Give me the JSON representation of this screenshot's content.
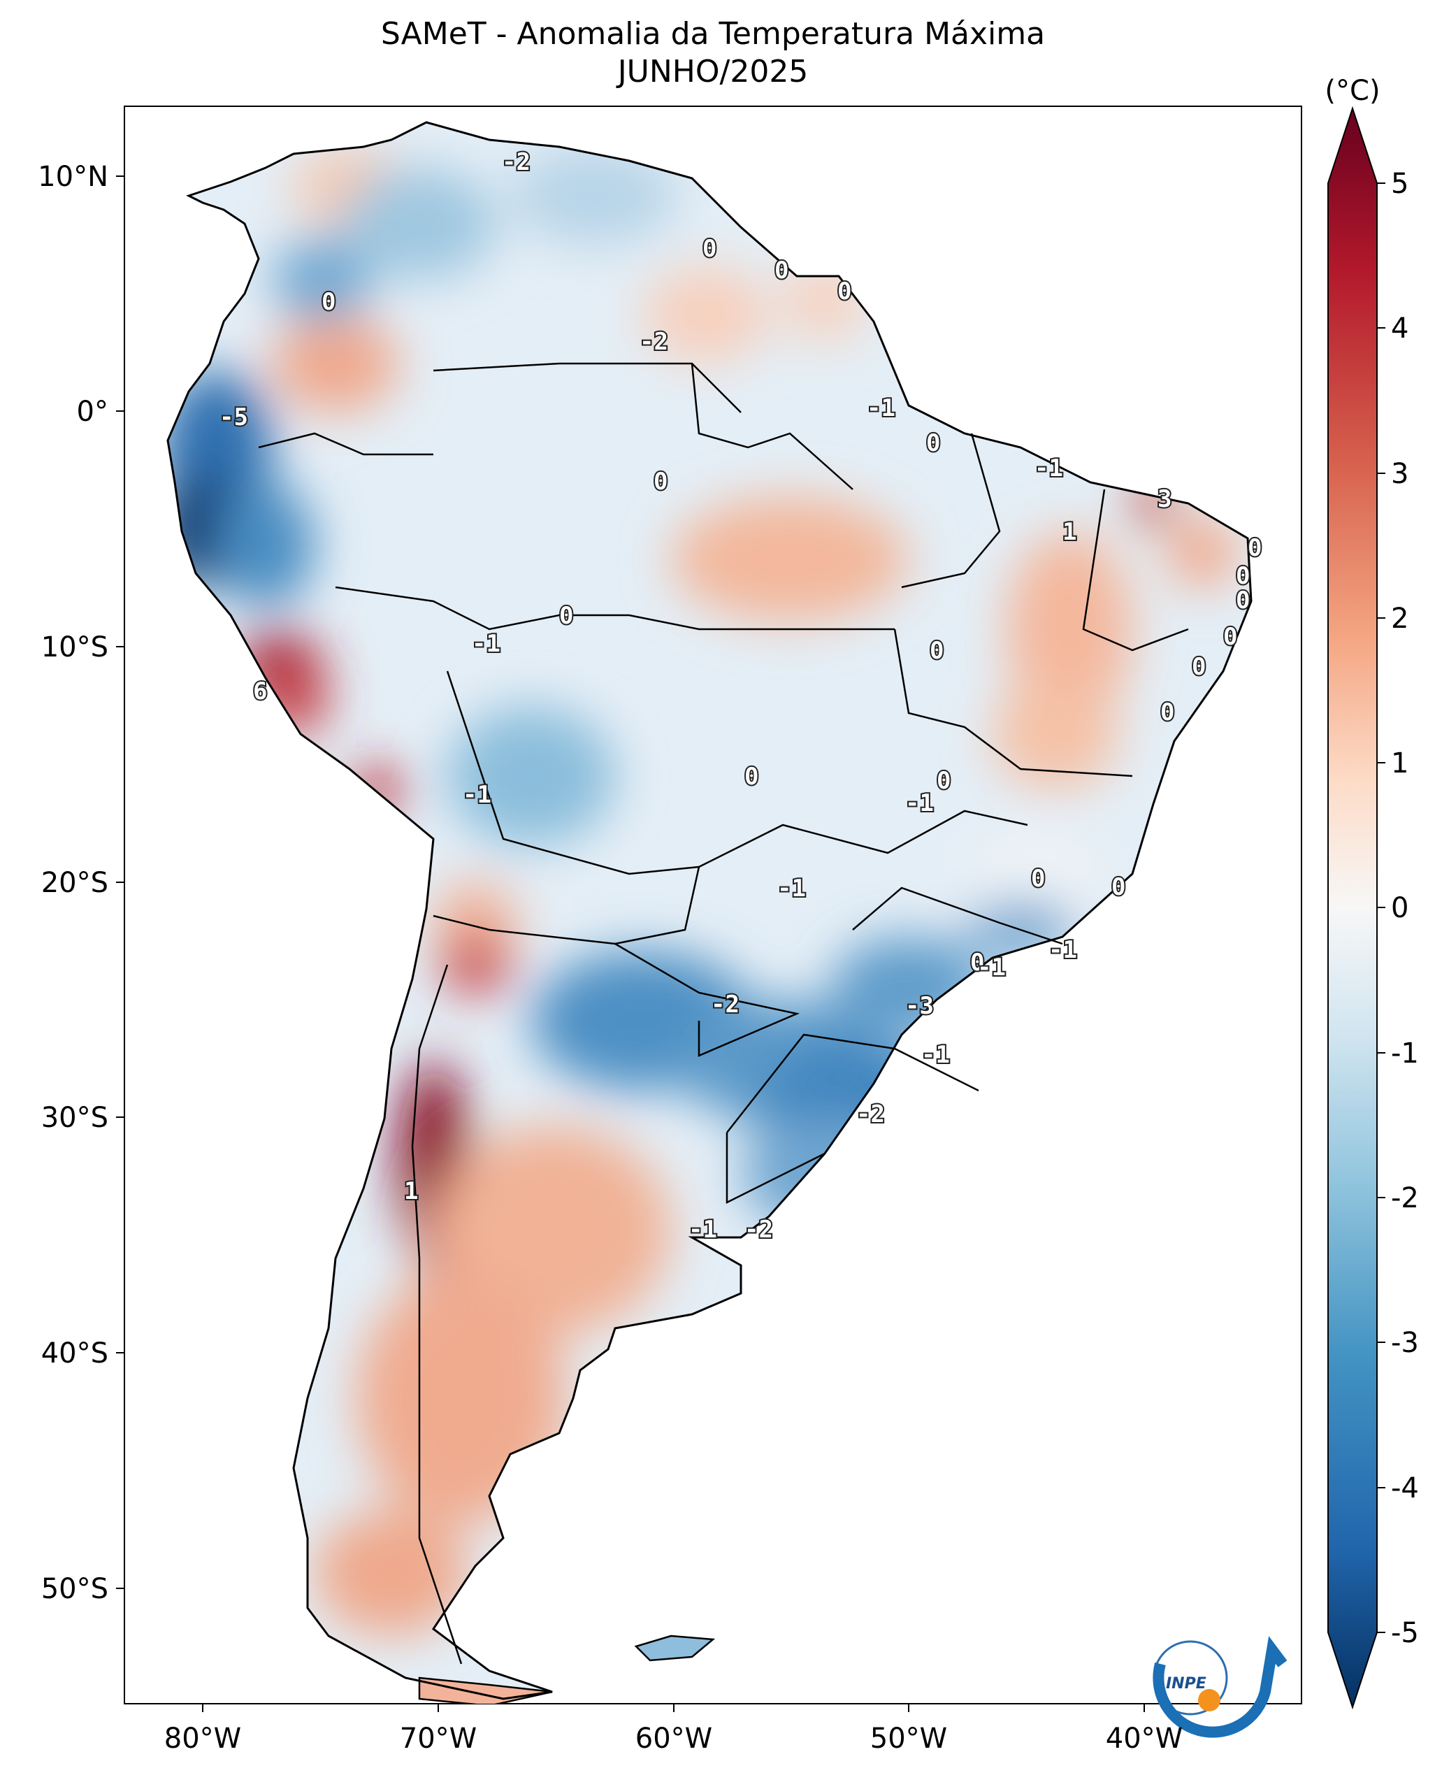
{
  "title": {
    "line1": "SAMeT - Anomalia da Temperatura Máxima",
    "line2": "JUNHO/2025"
  },
  "axes": {
    "lon_ticks": [
      "80°W",
      "70°W",
      "60°W",
      "50°W",
      "40°W"
    ],
    "lat_ticks": [
      "10°N",
      "0°",
      "10°S",
      "20°S",
      "30°S",
      "40°S",
      "50°S"
    ]
  },
  "colorbar": {
    "unit": "(°C)",
    "ticks": [
      "5",
      "4",
      "3",
      "2",
      "1",
      "0",
      "-1",
      "-2",
      "-3",
      "-4",
      "-5"
    ],
    "min": -5,
    "max": 5,
    "colors": {
      "max": "#67001f",
      "high": "#b2182b",
      "warm": "#d6604d",
      "mildwarm": "#f4a582",
      "lightwarm": "#fddbc7",
      "neutral": "#f7f7f7",
      "lightcool": "#d1e5f0",
      "mildcool": "#92c5de",
      "cool": "#4393c3",
      "low": "#2166ac",
      "min": "#053061"
    }
  },
  "contour_labels": [
    "-2",
    "0",
    "0",
    "0",
    "0",
    "-2",
    "0",
    "-1",
    "-5",
    "0",
    "0",
    "-1",
    "3",
    "1",
    "0",
    "0",
    "0",
    "0",
    "0",
    "-1",
    "0",
    "0",
    "0",
    "6",
    "-1",
    "0",
    "-1",
    "0",
    "-1",
    "0",
    "0",
    "-1",
    "-1",
    "-2",
    "-3",
    "-1",
    "-2",
    "1",
    "-1",
    "-2"
  ],
  "logo": {
    "text": "INPE"
  }
}
